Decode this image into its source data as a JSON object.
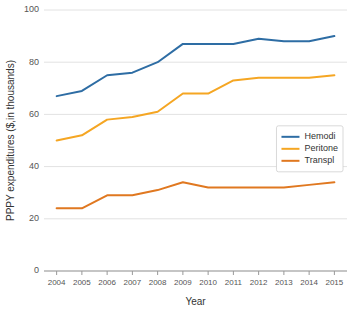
{
  "chart_data": {
    "type": "line",
    "x_label": "Year",
    "y_label": "PPPY expenditures ($,in thousands)",
    "x": [
      2004,
      2005,
      2006,
      2007,
      2008,
      2009,
      2010,
      2011,
      2012,
      2013,
      2014,
      2015
    ],
    "series": [
      {
        "name": "Hemodi",
        "color": "#2e6da4",
        "values": [
          67,
          69,
          75,
          76,
          80,
          87,
          87,
          87,
          89,
          88,
          88,
          90
        ]
      },
      {
        "name": "Peritone",
        "color": "#f5a623",
        "values": [
          50,
          52,
          58,
          59,
          61,
          68,
          68,
          73,
          74,
          74,
          74,
          75
        ]
      },
      {
        "name": "Transpl",
        "color": "#e07820",
        "values": [
          24,
          24,
          29,
          29,
          31,
          34,
          32,
          32,
          32,
          32,
          33,
          34
        ]
      }
    ],
    "xlim": [
      2003.5,
      2015.5
    ],
    "xticks": [
      2004,
      2005,
      2006,
      2007,
      2008,
      2009,
      2010,
      2011,
      2012,
      2013,
      2014,
      2015
    ],
    "ylim": [
      0,
      100
    ],
    "yticks": [
      0,
      20,
      40,
      60,
      80,
      100
    ],
    "grid": true,
    "legend": "lower right"
  }
}
